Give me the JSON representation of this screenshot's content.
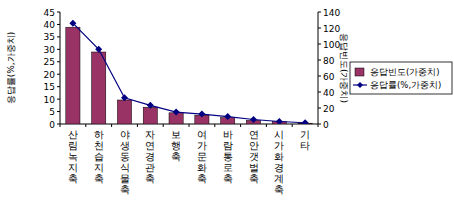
{
  "chart_data": {
    "type": "bar",
    "categories": [
      "산림녹지축",
      "하천습지축",
      "야생동식물축",
      "자연경관축",
      "보행축",
      "여가문화축",
      "바람통로축",
      "연안갯벌축",
      "시가화경계축",
      "기타"
    ],
    "series": [
      {
        "name": "응답빈도(가중치)",
        "type": "bar",
        "color": "#993366",
        "axis": "y2",
        "values": [
          121,
          90,
          30,
          21,
          14,
          11,
          8,
          4.5,
          3,
          1
        ]
      },
      {
        "name": "응답률(%,가중치)",
        "type": "line",
        "color": "#000080",
        "marker": "diamond",
        "values": [
          40.5,
          30,
          10.5,
          7.5,
          4.8,
          4,
          3,
          1.8,
          1,
          0.5
        ]
      }
    ],
    "y_label": "응답률(%,가중치)",
    "y2_label": "응답빈도(가중치)",
    "ylim": [
      0,
      45
    ],
    "yticks": [
      0,
      5,
      10,
      15,
      20,
      25,
      30,
      35,
      40,
      45
    ],
    "y2lim": [
      0,
      140
    ],
    "y2ticks": [
      0,
      20,
      40,
      60,
      80,
      100,
      120,
      140
    ],
    "grid": false,
    "legend": "right"
  }
}
